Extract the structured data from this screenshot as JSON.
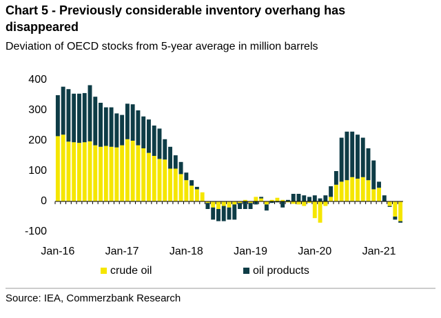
{
  "chart_data": {
    "type": "bar",
    "stacked": true,
    "title": "Chart 5 - Previously considerable inventory overhang has disappeared",
    "subtitle": "Deviation of OECD stocks from 5-year average in million barrels",
    "source": "Source: IEA, Commerzbank Research",
    "categories": [
      "Jan-16",
      null,
      null,
      null,
      null,
      null,
      null,
      null,
      null,
      null,
      null,
      null,
      "Jan-17",
      null,
      null,
      null,
      null,
      null,
      null,
      null,
      null,
      null,
      null,
      null,
      "Jan-18",
      null,
      null,
      null,
      null,
      null,
      null,
      null,
      null,
      null,
      null,
      null,
      "Jan-19",
      null,
      null,
      null,
      null,
      null,
      null,
      null,
      null,
      null,
      null,
      null,
      "Jan-20",
      null,
      null,
      null,
      null,
      null,
      null,
      null,
      null,
      null,
      null,
      null,
      "Jan-21",
      null,
      null,
      null,
      null
    ],
    "series": [
      {
        "name": "crude oil",
        "color": "#f5e600",
        "values": [
          215,
          220,
          197,
          195,
          193,
          195,
          198,
          185,
          180,
          183,
          180,
          178,
          185,
          205,
          200,
          185,
          175,
          160,
          150,
          140,
          138,
          108,
          108,
          90,
          70,
          52,
          40,
          30,
          -5,
          -20,
          -25,
          -15,
          -20,
          -10,
          -5,
          5,
          -5,
          15,
          10,
          -10,
          5,
          12,
          5,
          -3,
          -8,
          -10,
          -15,
          -5,
          -55,
          -70,
          -15,
          15,
          55,
          65,
          70,
          80,
          75,
          80,
          70,
          40,
          45,
          0,
          -15,
          -50,
          -65
        ]
      },
      {
        "name": "oil products",
        "color": "#0e3c46",
        "values": [
          135,
          158,
          173,
          160,
          162,
          162,
          185,
          160,
          145,
          127,
          130,
          112,
          100,
          117,
          120,
          115,
          105,
          110,
          100,
          100,
          67,
          72,
          44,
          40,
          25,
          18,
          8,
          0,
          -20,
          -40,
          -40,
          -50,
          -40,
          -50,
          -20,
          -25,
          -20,
          -10,
          5,
          -20,
          -5,
          -3,
          -20,
          5,
          25,
          25,
          20,
          15,
          20,
          10,
          20,
          35,
          45,
          145,
          160,
          150,
          145,
          130,
          105,
          95,
          20,
          20,
          -3,
          -10,
          -5
        ]
      }
    ],
    "ylim": [
      -100,
      400
    ],
    "yticks": [
      -100,
      0,
      100,
      200,
      300,
      400
    ],
    "grid": false
  }
}
